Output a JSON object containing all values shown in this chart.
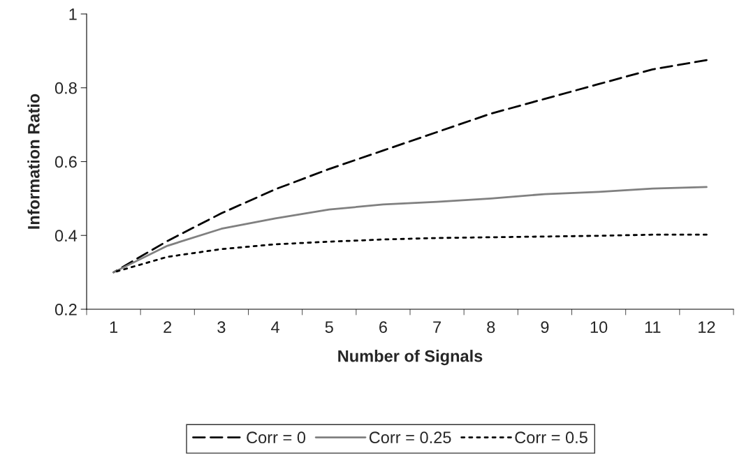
{
  "chart_data": {
    "type": "line",
    "xlabel": "Number of Signals",
    "ylabel": "Information Ratio",
    "categories": [
      "1",
      "2",
      "3",
      "4",
      "5",
      "6",
      "7",
      "8",
      "9",
      "10",
      "11",
      "12"
    ],
    "series": [
      {
        "name": "Corr = 0",
        "color": "#000000",
        "line_style": "dashed",
        "values": [
          0.3,
          0.385,
          0.46,
          0.525,
          0.58,
          0.63,
          0.68,
          0.73,
          0.77,
          0.81,
          0.85,
          0.875
        ]
      },
      {
        "name": "Corr = 0.25",
        "color": "#808080",
        "line_style": "solid",
        "values": [
          0.3,
          0.372,
          0.418,
          0.446,
          0.47,
          0.484,
          0.491,
          0.5,
          0.512,
          0.518,
          0.527,
          0.531
        ]
      },
      {
        "name": "Corr = 0.5",
        "color": "#000000",
        "line_style": "dotted",
        "values": [
          0.3,
          0.342,
          0.363,
          0.376,
          0.383,
          0.389,
          0.393,
          0.395,
          0.397,
          0.399,
          0.402,
          0.402
        ]
      }
    ],
    "ylim": [
      0.2,
      1
    ],
    "yticks": [
      0.2,
      0.4,
      0.6,
      0.8,
      1
    ],
    "grid": false,
    "legend": "bottom",
    "marker": "none"
  }
}
